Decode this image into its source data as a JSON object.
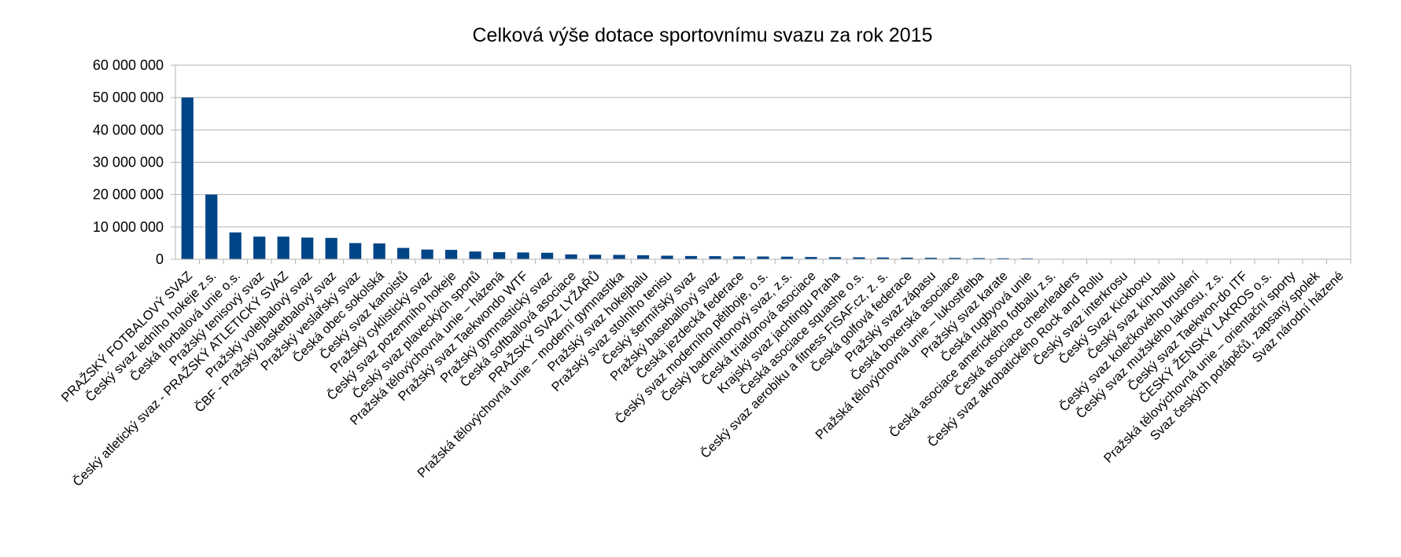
{
  "chart_data": {
    "type": "bar",
    "title": "Celková výše dotace sportovnímu svazu za rok 2015",
    "xlabel": "",
    "ylabel": "",
    "ylim": [
      0,
      60000000
    ],
    "yticks": [
      0,
      10000000,
      20000000,
      30000000,
      40000000,
      50000000,
      60000000
    ],
    "ytick_labels": [
      "0",
      "10 000 000",
      "20 000 000",
      "30 000 000",
      "40 000 000",
      "50 000 000",
      "60 000 000"
    ],
    "grid": true,
    "legend": "none",
    "bar_color": "#004586",
    "categories": [
      "PRAŽSKÝ FOTBALOVÝ SVAZ",
      "Český svaz ledního hokeje z.s.",
      "Česká florbalová unie o.s.",
      "Pražský tenisový svaz",
      "Český atletický svaz - PRAŽSKÝ ATLETICKÝ SVAZ",
      "Pražský volejbalový svaz",
      "ČBF - Pražský basketbalový svaz",
      "Pražský veslařský svaz",
      "Česká obec sokolská",
      "Český svaz kanoistů",
      "Pražský cyklistický svaz",
      "Český svaz pozemního hokeje",
      "Český svaz plaveckých sportů",
      "Pražská tělovýchovná unie – házená",
      "Pražský svaz Taekwondo WTF",
      "Pražský gymnastický svaz",
      "Česká softballová asociace",
      "PRAŽSKÝ SVAZ LYŽAŘŮ",
      "Pražská tělovýchovná unie – moderní gymnastika",
      "Pražský svaz hokejbalu",
      "Pražský svaz stolního tenisu",
      "Český šermířský svaz",
      "Pražský baseballový svaz",
      "Česká jezdecká federace",
      "Český svaz moderního pětiboje, o.s.",
      "Český badmintonový svaz, z.s.",
      "Česká triatlonová asociace",
      "Krajský svaz jachtingu Praha",
      "Česká asociace squashe o.s.",
      "Český svaz aerobiku a fitness FISAF.cz, z. s.",
      "Česká golfová federace",
      "Pražský svaz zápasu",
      "Česká boxerská asociace",
      "Pražská tělovýchovná unie – lukostřelba",
      "Pražský svaz karate",
      "Česká rugbyová unie",
      "Česká asociace amerického fotbalu z.s.",
      "Česká asociace cheerleaders",
      "Český svaz akrobatického Rock and Rollu",
      "Český svaz interkrosu",
      "Český Svaz Kickboxu",
      "Český svaz kin-ballu",
      "Český svaz kolečkového bruslení",
      "Český svaz mužského lakrosu, z.s.",
      "Český svaz Taekwon-do ITF",
      "ČESKÝ ŽENSKÝ LAKROS o.s.",
      "Pražská tělovýchovná unie – orientační sporty",
      "Svaz českých potápěčů, zapsaný spolek",
      "Svaz národní házené"
    ],
    "values": [
      50000000,
      20000000,
      8300000,
      7000000,
      7000000,
      6700000,
      6600000,
      5000000,
      4900000,
      3500000,
      3000000,
      2900000,
      2400000,
      2200000,
      2100000,
      2000000,
      1500000,
      1400000,
      1350000,
      1250000,
      1100000,
      1000000,
      950000,
      900000,
      850000,
      800000,
      700000,
      650000,
      600000,
      550000,
      500000,
      450000,
      400000,
      350000,
      300000,
      250000,
      80000,
      70000,
      60000,
      50000,
      40000,
      35000,
      30000,
      25000,
      20000,
      18000,
      15000,
      12000,
      10000
    ]
  }
}
